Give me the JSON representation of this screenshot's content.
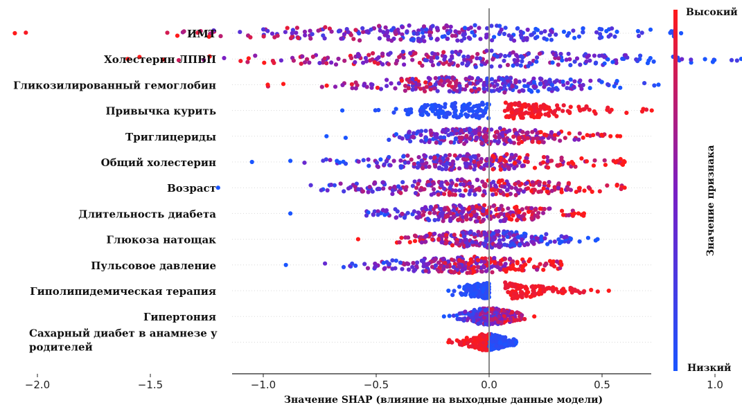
{
  "chart_data": {
    "type": "scatter",
    "subtype": "shap-beeswarm",
    "xlabel": "Значение SHAP  (влияние на выходные данные модели)",
    "xlim": [
      -2.2,
      1.3
    ],
    "xticks": [
      {
        "value": -2.0,
        "label": "−2.0"
      },
      {
        "value": -1.5,
        "label": "−1.5"
      },
      {
        "value": -1.0,
        "label": "−1.0"
      },
      {
        "value": -0.5,
        "label": "−0.5"
      },
      {
        "value": 0.0,
        "label": "0.0"
      },
      {
        "value": 0.5,
        "label": "0.5"
      },
      {
        "value": 1.0,
        "label": "1.0"
      }
    ],
    "colorbar": {
      "title": "Значение признака",
      "high_label": "Высокий",
      "low_label": "Низкий",
      "high_color": "#ff1a1a",
      "low_color": "#1a55ff"
    },
    "features": [
      {
        "name": "ИМТ",
        "min": -2.1,
        "max": 0.85,
        "mode": "mixed_neg_high"
      },
      {
        "name": "Холестерин ЛПВП",
        "min": -1.6,
        "max": 1.22,
        "mode": "mixed_neg_high"
      },
      {
        "name": "Гликозилированный гемоглобин",
        "min": -0.98,
        "max": 0.75,
        "mode": "mixed_neg_high"
      },
      {
        "name": "Привычка курить",
        "min": -0.65,
        "max": 0.72,
        "mode": "split_pos_high"
      },
      {
        "name": "Триглицериды",
        "min": -0.72,
        "max": 0.58,
        "mode": "mixed_pos_high"
      },
      {
        "name": "Общий холестерин",
        "min": -1.05,
        "max": 0.6,
        "mode": "mixed_pos_high"
      },
      {
        "name": "Возраст",
        "min": -1.2,
        "max": 0.6,
        "mode": "mixed_pos_high"
      },
      {
        "name": "Длительность диабета",
        "min": -0.88,
        "max": 0.42,
        "mode": "mixed_pos_high"
      },
      {
        "name": "Глюкоза натощак",
        "min": -0.58,
        "max": 0.48,
        "mode": "mixed_neg_high"
      },
      {
        "name": "Пульсовое давление",
        "min": -0.9,
        "max": 0.32,
        "mode": "mixed_pos_high"
      },
      {
        "name": "Гиполипидемическая терапия",
        "min": -0.18,
        "max": 0.53,
        "mode": "split_pos_high"
      },
      {
        "name": "Гипертония",
        "min": -0.2,
        "max": 0.2,
        "mode": "mixed_pos_high"
      },
      {
        "name": "Сахарный диабет в анамнезе у родителей",
        "name_lines": [
          "Сахарный диабет в анамнезе у",
          "родителей"
        ],
        "min": -0.18,
        "max": 0.12,
        "mode": "split_neg_high"
      }
    ]
  }
}
